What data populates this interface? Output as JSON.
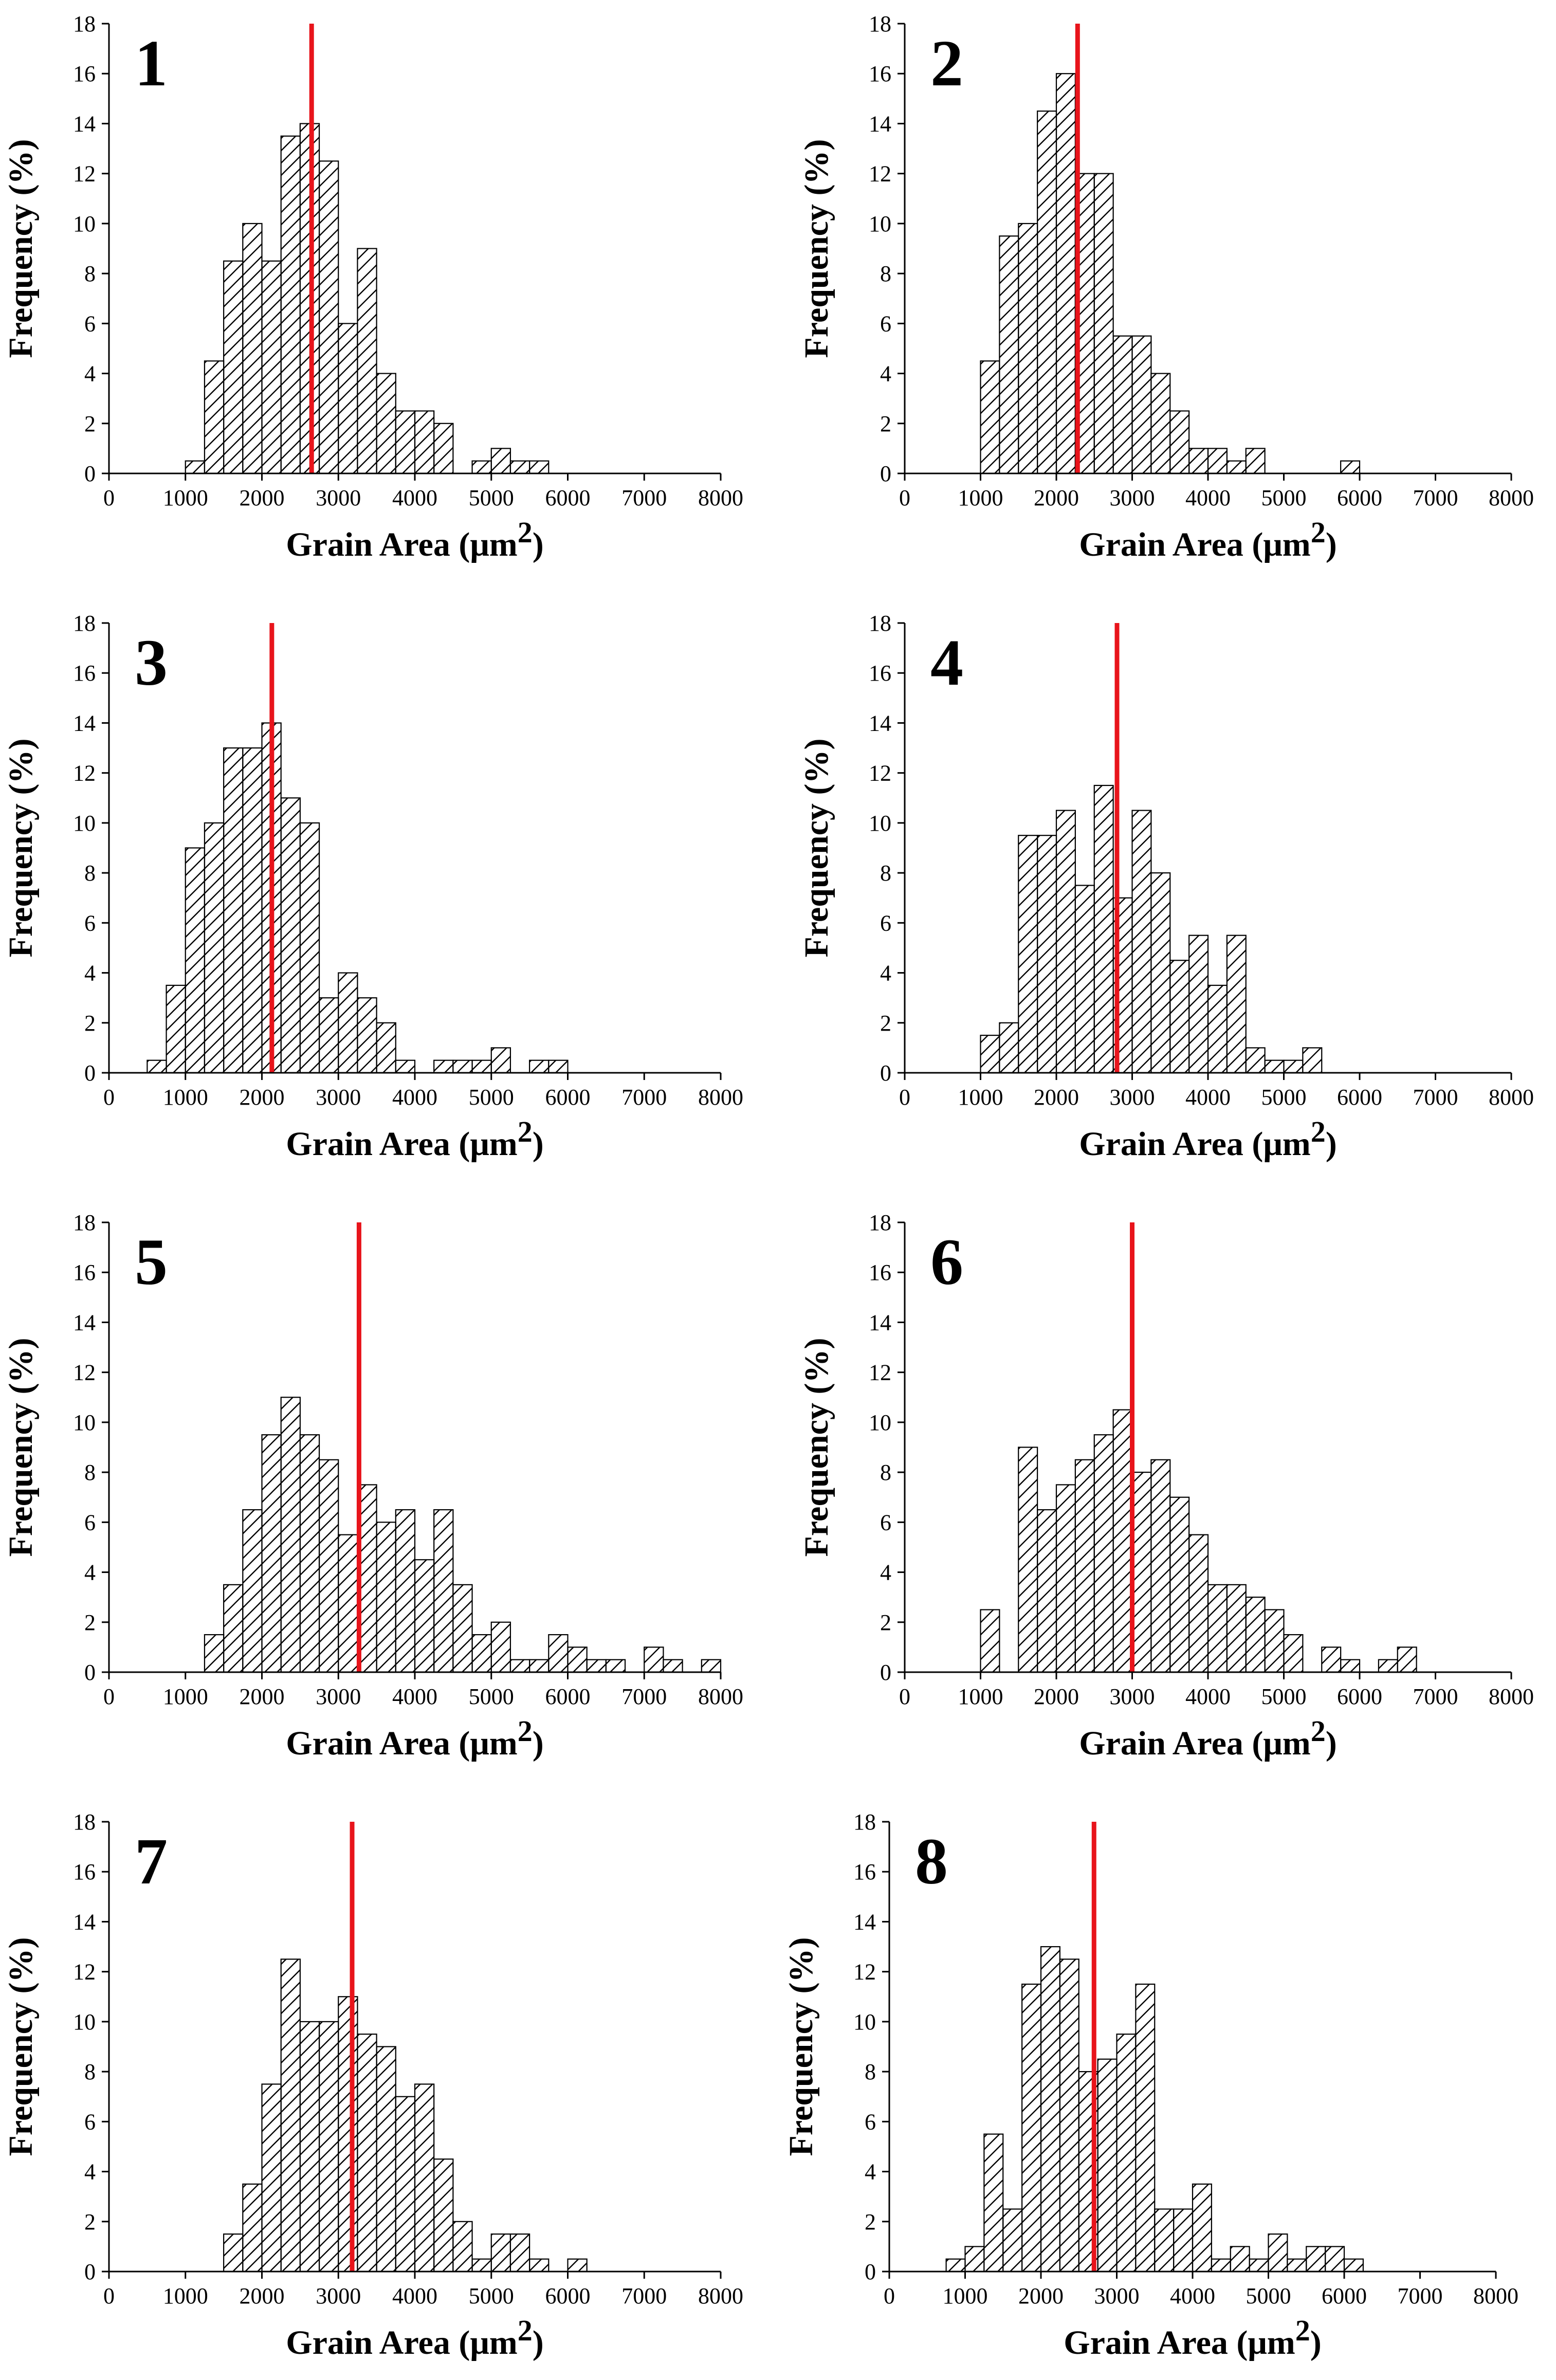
{
  "figure": {
    "background": "#ffffff"
  },
  "chart_data": [
    {
      "type": "bar",
      "panel_label": "1",
      "xlabel": "Grain Area (μm",
      "xlabel_sup": "2",
      "xlabel_close": ")",
      "ylabel": "Frequency (%)",
      "xlim": [
        0,
        8000
      ],
      "ylim": [
        0,
        18
      ],
      "xticks": [
        0,
        1000,
        2000,
        3000,
        4000,
        5000,
        6000,
        7000,
        8000
      ],
      "yticks": [
        0,
        2,
        4,
        6,
        8,
        10,
        12,
        14,
        16,
        18
      ],
      "bin_width": 250,
      "bin_starts": [
        1000,
        1250,
        1500,
        1750,
        2000,
        2250,
        2500,
        2750,
        3000,
        3250,
        3500,
        3750,
        4000,
        4250,
        4750,
        5000,
        5250,
        5500
      ],
      "values": [
        0.5,
        4.5,
        8.5,
        10,
        8.5,
        13.5,
        14,
        12.5,
        6,
        9,
        4,
        2.5,
        2.5,
        2,
        0.5,
        1,
        0.5,
        0.5
      ],
      "mean_line": 2650,
      "bar_pattern": "diagonal-hatch",
      "mean_line_color": "#e8141b"
    },
    {
      "type": "bar",
      "panel_label": "2",
      "xlabel": "Grain Area (μm",
      "xlabel_sup": "2",
      "xlabel_close": ")",
      "ylabel": "Frequency (%)",
      "xlim": [
        0,
        8000
      ],
      "ylim": [
        0,
        18
      ],
      "xticks": [
        0,
        1000,
        2000,
        3000,
        4000,
        5000,
        6000,
        7000,
        8000
      ],
      "yticks": [
        0,
        2,
        4,
        6,
        8,
        10,
        12,
        14,
        16,
        18
      ],
      "bin_width": 250,
      "bin_starts": [
        1000,
        1250,
        1500,
        1750,
        2000,
        2250,
        2500,
        2750,
        3000,
        3250,
        3500,
        3750,
        4000,
        4250,
        4500,
        5750
      ],
      "values": [
        4.5,
        9.5,
        10,
        14.5,
        16,
        12,
        12,
        5.5,
        5.5,
        4,
        2.5,
        1,
        1,
        0.5,
        1,
        0.5
      ],
      "mean_line": 2280,
      "bar_pattern": "diagonal-hatch",
      "mean_line_color": "#e8141b"
    },
    {
      "type": "bar",
      "panel_label": "3",
      "xlabel": "Grain Area (μm",
      "xlabel_sup": "2",
      "xlabel_close": ")",
      "ylabel": "Frequency (%)",
      "xlim": [
        0,
        8000
      ],
      "ylim": [
        0,
        18
      ],
      "xticks": [
        0,
        1000,
        2000,
        3000,
        4000,
        5000,
        6000,
        7000,
        8000
      ],
      "yticks": [
        0,
        2,
        4,
        6,
        8,
        10,
        12,
        14,
        16,
        18
      ],
      "bin_width": 250,
      "bin_starts": [
        500,
        750,
        1000,
        1250,
        1500,
        1750,
        2000,
        2250,
        2500,
        2750,
        3000,
        3250,
        3500,
        3750,
        4250,
        4500,
        4750,
        5000,
        5500,
        5750
      ],
      "values": [
        0.5,
        3.5,
        9,
        10,
        13,
        13,
        14,
        11,
        10,
        3,
        4,
        3,
        2,
        0.5,
        0.5,
        0.5,
        0.5,
        1,
        0.5,
        0.5
      ],
      "mean_line": 2130,
      "bar_pattern": "diagonal-hatch",
      "mean_line_color": "#e8141b"
    },
    {
      "type": "bar",
      "panel_label": "4",
      "xlabel": "Grain Area (μm",
      "xlabel_sup": "2",
      "xlabel_close": ")",
      "ylabel": "Frequency (%)",
      "xlim": [
        0,
        8000
      ],
      "ylim": [
        0,
        18
      ],
      "xticks": [
        0,
        1000,
        2000,
        3000,
        4000,
        5000,
        6000,
        7000,
        8000
      ],
      "yticks": [
        0,
        2,
        4,
        6,
        8,
        10,
        12,
        14,
        16,
        18
      ],
      "bin_width": 250,
      "bin_starts": [
        1000,
        1250,
        1500,
        1750,
        2000,
        2250,
        2500,
        2750,
        3000,
        3250,
        3500,
        3750,
        4000,
        4250,
        4500,
        4750,
        5000,
        5250
      ],
      "values": [
        1.5,
        2,
        9.5,
        9.5,
        10.5,
        7.5,
        11.5,
        7,
        10.5,
        8,
        4.5,
        5.5,
        3.5,
        5.5,
        1,
        0.5,
        0.5,
        1
      ],
      "mean_line": 2800,
      "bar_pattern": "diagonal-hatch",
      "mean_line_color": "#e8141b"
    },
    {
      "type": "bar",
      "panel_label": "5",
      "xlabel": "Grain Area (μm",
      "xlabel_sup": "2",
      "xlabel_close": ")",
      "ylabel": "Frequency (%)",
      "xlim": [
        0,
        8000
      ],
      "ylim": [
        0,
        18
      ],
      "xticks": [
        0,
        1000,
        2000,
        3000,
        4000,
        5000,
        6000,
        7000,
        8000
      ],
      "yticks": [
        0,
        2,
        4,
        6,
        8,
        10,
        12,
        14,
        16,
        18
      ],
      "bin_width": 250,
      "bin_starts": [
        1250,
        1500,
        1750,
        2000,
        2250,
        2500,
        2750,
        3000,
        3250,
        3500,
        3750,
        4000,
        4250,
        4500,
        4750,
        5000,
        5250,
        5500,
        5750,
        6000,
        6250,
        6500,
        7000,
        7250,
        7750
      ],
      "values": [
        1.5,
        3.5,
        6.5,
        9.5,
        11,
        9.5,
        8.5,
        5.5,
        7.5,
        6,
        6.5,
        4.5,
        6.5,
        3.5,
        1.5,
        2,
        0.5,
        0.5,
        1.5,
        1,
        0.5,
        0.5,
        1,
        0.5,
        0.5
      ],
      "mean_line": 3270,
      "bar_pattern": "diagonal-hatch",
      "mean_line_color": "#e8141b"
    },
    {
      "type": "bar",
      "panel_label": "6",
      "xlabel": "Grain Area (μm",
      "xlabel_sup": "2",
      "xlabel_close": ")",
      "ylabel": "Frequency (%)",
      "xlim": [
        0,
        8000
      ],
      "ylim": [
        0,
        18
      ],
      "xticks": [
        0,
        1000,
        2000,
        3000,
        4000,
        5000,
        6000,
        7000,
        8000
      ],
      "yticks": [
        0,
        2,
        4,
        6,
        8,
        10,
        12,
        14,
        16,
        18
      ],
      "bin_width": 250,
      "bin_starts": [
        1000,
        1500,
        1750,
        2000,
        2250,
        2500,
        2750,
        3000,
        3250,
        3500,
        3750,
        4000,
        4250,
        4500,
        4750,
        5000,
        5500,
        5750,
        6250,
        6500
      ],
      "values": [
        2.5,
        9,
        6.5,
        7.5,
        8.5,
        9.5,
        10.5,
        8,
        8.5,
        7,
        5.5,
        3.5,
        3.5,
        3,
        2.5,
        1.5,
        1,
        0.5,
        0.5,
        1
      ],
      "mean_line": 3000,
      "bar_pattern": "diagonal-hatch",
      "mean_line_color": "#e8141b"
    },
    {
      "type": "bar",
      "panel_label": "7",
      "xlabel": "Grain Area (μm",
      "xlabel_sup": "2",
      "xlabel_close": ")",
      "ylabel": "Frequency (%)",
      "xlim": [
        0,
        8000
      ],
      "ylim": [
        0,
        18
      ],
      "xticks": [
        0,
        1000,
        2000,
        3000,
        4000,
        5000,
        6000,
        7000,
        8000
      ],
      "yticks": [
        0,
        2,
        4,
        6,
        8,
        10,
        12,
        14,
        16,
        18
      ],
      "bin_width": 250,
      "bin_starts": [
        1500,
        1750,
        2000,
        2250,
        2500,
        2750,
        3000,
        3250,
        3500,
        3750,
        4000,
        4250,
        4500,
        4750,
        5000,
        5250,
        5500,
        6000
      ],
      "values": [
        1.5,
        3.5,
        7.5,
        12.5,
        10,
        10,
        11,
        9.5,
        9,
        7,
        7.5,
        4.5,
        2,
        0.5,
        1.5,
        1.5,
        0.5,
        0.5
      ],
      "mean_line": 3180,
      "bar_pattern": "diagonal-hatch",
      "mean_line_color": "#e8141b"
    },
    {
      "type": "bar",
      "panel_label": "8",
      "xlabel": "Grain Area (μm",
      "xlabel_sup": "2",
      "xlabel_close": ")",
      "ylabel": "Frequency (%)",
      "xlim": [
        0,
        8000
      ],
      "ylim": [
        0,
        18
      ],
      "xticks": [
        0,
        1000,
        2000,
        3000,
        4000,
        5000,
        6000,
        7000,
        8000
      ],
      "yticks": [
        0,
        2,
        4,
        6,
        8,
        10,
        12,
        14,
        16,
        18
      ],
      "bin_width": 250,
      "bin_starts": [
        750,
        1000,
        1250,
        1500,
        1750,
        2000,
        2250,
        2500,
        2750,
        3000,
        3250,
        3500,
        3750,
        4000,
        4250,
        4500,
        4750,
        5000,
        5250,
        5500,
        5750,
        6000
      ],
      "values": [
        0.5,
        1,
        5.5,
        2.5,
        11.5,
        13,
        12.5,
        8,
        8.5,
        9.5,
        11.5,
        2.5,
        2.5,
        3.5,
        0.5,
        1,
        0.5,
        1.5,
        0.5,
        1,
        1,
        0.5
      ],
      "mean_line": 2700,
      "bar_pattern": "diagonal-hatch",
      "mean_line_color": "#e8141b"
    }
  ]
}
